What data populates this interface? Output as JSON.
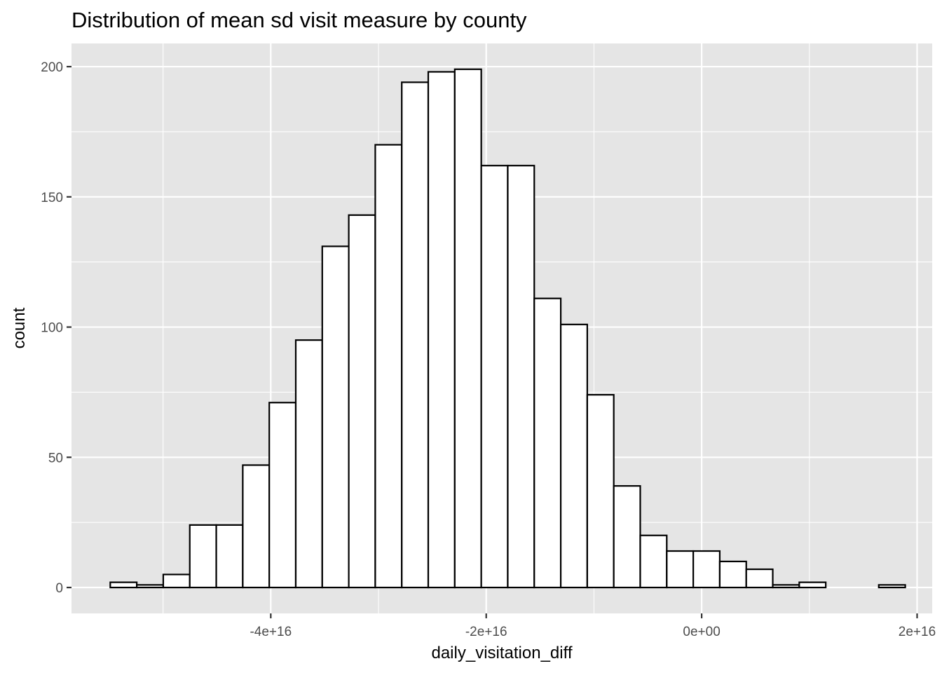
{
  "chart_data": {
    "type": "bar",
    "subtype": "histogram",
    "title": "Distribution of mean sd visit measure by county",
    "xlabel": "daily_visitation_diff",
    "ylabel": "count",
    "x_ticks": [
      {
        "value": -4e+16,
        "label": "-4e+16"
      },
      {
        "value": -2e+16,
        "label": "-2e+16"
      },
      {
        "value": 0,
        "label": "0e+00"
      },
      {
        "value": 2e+16,
        "label": "2e+16"
      }
    ],
    "y_ticks": [
      {
        "value": 0,
        "label": "0"
      },
      {
        "value": 50,
        "label": "50"
      },
      {
        "value": 100,
        "label": "100"
      },
      {
        "value": 150,
        "label": "150"
      },
      {
        "value": 200,
        "label": "200"
      }
    ],
    "xlim": [
      -5.85e+16,
      2.14e+16
    ],
    "ylim": [
      -9.95,
      208.9
    ],
    "bin_width": 2460000000000000.0,
    "first_bin_start": -5.49e+16,
    "counts": [
      2,
      1,
      5,
      24,
      24,
      47,
      71,
      95,
      131,
      143,
      170,
      194,
      198,
      199,
      162,
      162,
      111,
      101,
      74,
      39,
      20,
      14,
      14,
      10,
      7,
      1,
      2,
      0,
      0,
      1
    ],
    "bar_fill": "#ffffff",
    "bar_stroke": "#000000",
    "panel_background": "#e5e5e5",
    "grid_color": "#ffffff",
    "grid": true,
    "legend": "none"
  }
}
